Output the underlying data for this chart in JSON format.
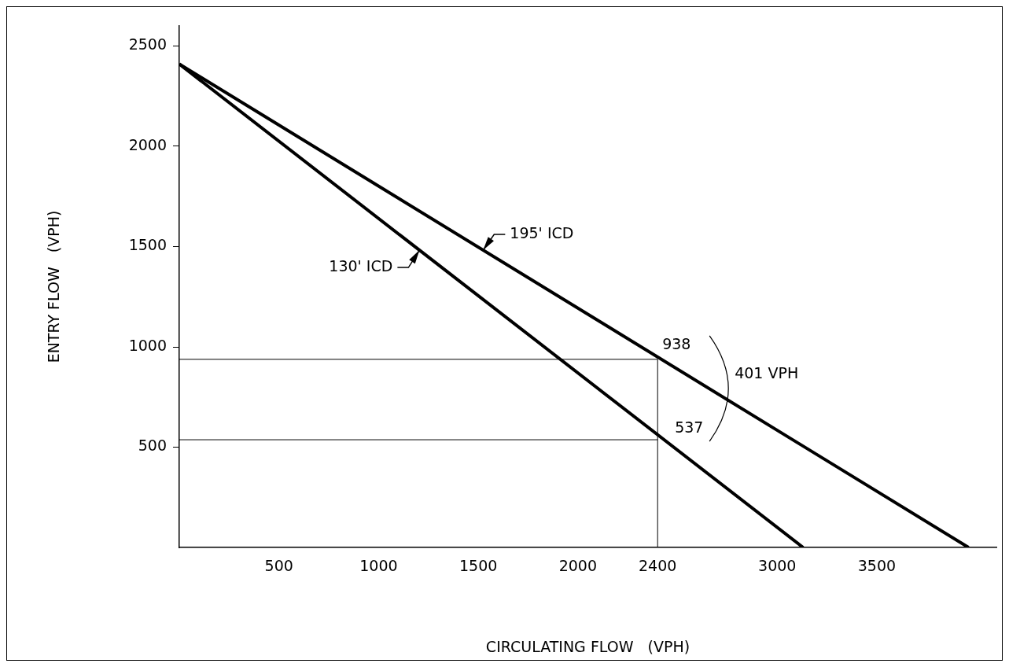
{
  "chart_data": {
    "type": "line",
    "xlabel": "CIRCULATING FLOW   (VPH)",
    "ylabel": "ENTRY FLOW   (VPH)",
    "xlim": [
      0,
      4100
    ],
    "ylim": [
      0,
      2600
    ],
    "xticks": [
      500,
      1000,
      1500,
      2000,
      2400,
      3000,
      3500
    ],
    "yticks": [
      500,
      1000,
      1500,
      2000,
      2500
    ],
    "grid": false,
    "marker": "none",
    "line_style": "solid",
    "series": [
      {
        "name": "130' ICD",
        "color": "#000000",
        "x": [
          0,
          3130
        ],
        "values": [
          2410,
          0
        ]
      },
      {
        "name": "195' ICD",
        "color": "#000000",
        "x": [
          0,
          3960
        ],
        "values": [
          2410,
          0
        ]
      }
    ],
    "ref_lines": [
      {
        "axis": "y",
        "value": 938,
        "label": "938"
      },
      {
        "axis": "y",
        "value": 537,
        "label": "537"
      },
      {
        "axis": "x",
        "value": 2400
      }
    ],
    "annotations": [
      "401 VPH"
    ]
  }
}
